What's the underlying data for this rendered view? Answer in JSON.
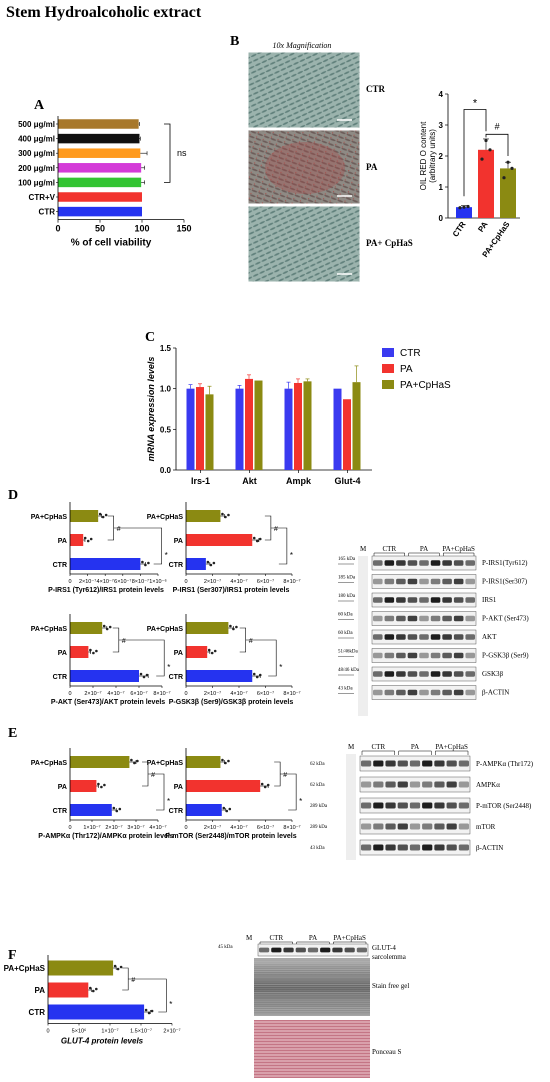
{
  "title": "Stem Hydroalcoholic  extract",
  "panels": {
    "A": "A",
    "B": "B",
    "C": "C",
    "D": "D",
    "E": "E",
    "F": "F"
  },
  "colors": {
    "brown": "#a8782a",
    "black": "#111111",
    "orange": "#ff9a1e",
    "magenta": "#d43bd8",
    "green": "#33c433",
    "red": "#f2332e",
    "blue": "#2533f0",
    "olive": "#8b8a12",
    "cpBlue": "#3a3af0"
  },
  "chart_data": [
    {
      "id": "A",
      "type": "bar",
      "orientation": "horizontal",
      "categories": [
        "500 μg/ml",
        "400 μg/ml",
        "300 μg/ml",
        "200 μg/ml",
        "100 μg/ml",
        "CTR+V",
        "CTR"
      ],
      "values": [
        96,
        97,
        98,
        99,
        99,
        100,
        100
      ],
      "errors": [
        1,
        1,
        8,
        4,
        4,
        0,
        0
      ],
      "xlabel": "% of cell viability",
      "xlim": [
        0,
        150
      ],
      "ticks": [
        "0",
        "50",
        "100",
        "150"
      ],
      "annotation": "ns"
    },
    {
      "id": "B",
      "type": "bar",
      "categories": [
        "CTR",
        "PA",
        "PA+CpHaS"
      ],
      "values": [
        0.35,
        2.2,
        1.6
      ],
      "errors": [
        0.05,
        0.35,
        0.2
      ],
      "points": [
        [
          0.33,
          0.35,
          0.37
        ],
        [
          1.9,
          2.5,
          2.2
        ],
        [
          1.3,
          1.8,
          1.6
        ]
      ],
      "ylabel": "OIL RED O content\n(arbitrary units)",
      "ylim": [
        0,
        4
      ],
      "ticks": [
        "0",
        "1",
        "2",
        "3",
        "4"
      ],
      "annotations": [
        "*",
        "#"
      ],
      "image_title": "10x Magnification",
      "image_labels": [
        "CTR",
        "PA",
        "PA+ CpHaS"
      ]
    },
    {
      "id": "C",
      "type": "bar",
      "categories": [
        "Irs-1",
        "Akt",
        "Ampk",
        "Glut-4"
      ],
      "series": [
        {
          "name": "CTR",
          "values": [
            1.0,
            1.0,
            1.0,
            1.0
          ],
          "errors": [
            0.05,
            0.04,
            0.08,
            0.0
          ]
        },
        {
          "name": "PA",
          "values": [
            1.02,
            1.12,
            1.07,
            0.87
          ],
          "errors": [
            0.04,
            0.05,
            0.05,
            0.0
          ]
        },
        {
          "name": "PA+CpHaS",
          "values": [
            0.93,
            1.1,
            1.09,
            1.08
          ],
          "errors": [
            0.1,
            0.0,
            0.03,
            0.2
          ]
        }
      ],
      "ylabel": "mRNA expression levels",
      "ylim": [
        0,
        1.5
      ],
      "ticks": [
        "0.0",
        "0.5",
        "1.0",
        "1.5"
      ]
    },
    {
      "id": "D1",
      "type": "bar",
      "orientation": "horizontal",
      "categories": [
        "PA+CpHaS",
        "PA",
        "CTR"
      ],
      "values": [
        3.2e-07,
        1.5e-07,
        8e-07
      ],
      "errors": [
        4e-08,
        2e-08,
        6e-08
      ],
      "xlabel": "P-IRS1 (Tyr612)/IRS1 protein levels",
      "ticks": [
        "0",
        "2×10⁻⁷",
        "4×10⁻⁷",
        "6×10⁻⁷",
        "8×10⁻⁷",
        "1×10⁻⁶"
      ],
      "xlim": [
        0,
        1e-06
      ],
      "annotations": [
        "#",
        "*"
      ]
    },
    {
      "id": "D2",
      "type": "bar",
      "orientation": "horizontal",
      "categories": [
        "PA+CpHaS",
        "PA",
        "CTR"
      ],
      "values": [
        2.6e-07,
        5e-07,
        1.5e-07
      ],
      "errors": [
        3e-08,
        5e-08,
        3e-08
      ],
      "xlabel": "P-IRS1 (Ser307)/IRS1 protein levels",
      "ticks": [
        "0",
        "2×10⁻⁷",
        "4×10⁻⁷",
        "6×10⁻⁷",
        "8×10⁻⁷"
      ],
      "xlim": [
        0,
        8e-07
      ],
      "annotations": [
        "#",
        "*"
      ]
    },
    {
      "id": "D3",
      "type": "bar",
      "orientation": "horizontal",
      "categories": [
        "PA+CpHaS",
        "PA",
        "CTR"
      ],
      "values": [
        2.8e-07,
        1.6e-07,
        6e-07
      ],
      "errors": [
        4e-08,
        2e-08,
        8e-08
      ],
      "xlabel": "P-AKT (Ser473)/AKT protein levels",
      "ticks": [
        "0",
        "2×10⁻⁷",
        "4×10⁻⁷",
        "6×10⁻⁷",
        "8×10⁻⁷"
      ],
      "xlim": [
        0,
        8e-07
      ],
      "annotations": [
        "#",
        "*"
      ]
    },
    {
      "id": "D4",
      "type": "bar",
      "orientation": "horizontal",
      "categories": [
        "PA+CpHaS",
        "PA",
        "CTR"
      ],
      "values": [
        3.2e-07,
        1.6e-07,
        5e-07
      ],
      "errors": [
        4e-08,
        2e-08,
        6e-08
      ],
      "xlabel": "P-GSK3β (Ser9)/GSK3β protein levels",
      "ticks": [
        "0",
        "2×10⁻⁷",
        "4×10⁻⁷",
        "6×10⁻⁷",
        "8×10⁻⁷"
      ],
      "xlim": [
        0,
        8e-07
      ],
      "annotations": [
        "#",
        "*"
      ]
    },
    {
      "id": "E1",
      "type": "bar",
      "orientation": "horizontal",
      "categories": [
        "PA+CpHaS",
        "PA",
        "CTR"
      ],
      "values": [
        2.7e-07,
        1.2e-07,
        1.9e-07
      ],
      "errors": [
        3e-08,
        1e-08,
        2e-08
      ],
      "xlabel": "P-AMPKα (Thr172)/AMPKα protein levels",
      "ticks": [
        "0",
        "1×10⁻⁷",
        "2×10⁻⁷",
        "3×10⁻⁷",
        "4×10⁻⁷"
      ],
      "xlim": [
        0,
        4e-07
      ],
      "annotations": [
        "#",
        "*"
      ]
    },
    {
      "id": "E2",
      "type": "bar",
      "orientation": "horizontal",
      "categories": [
        "PA+CpHaS",
        "PA",
        "CTR"
      ],
      "values": [
        2.6e-07,
        5.6e-07,
        2.7e-07
      ],
      "errors": [
        3e-08,
        6e-08,
        3e-08
      ],
      "xlabel": "P-mTOR (Ser2448)/mTOR protein levels",
      "ticks": [
        "0",
        "2×10⁻⁷",
        "4×10⁻⁷",
        "6×10⁻⁷",
        "8×10⁻⁷"
      ],
      "xlim": [
        0,
        8e-07
      ],
      "annotations": [
        "#",
        "*"
      ]
    },
    {
      "id": "F",
      "type": "bar",
      "orientation": "horizontal",
      "categories": [
        "PA+CpHaS",
        "PA",
        "CTR"
      ],
      "values": [
        1.05e-07,
        6.5e-08,
        1.55e-07
      ],
      "errors": [
        5e-09,
        5e-09,
        1e-08
      ],
      "xlabel": "GLUT-4 protein levels",
      "ticks": [
        "0",
        "5×10⁶",
        "1×10⁻⁷",
        "1.5×10⁻⁷",
        "2×10⁻⁷"
      ],
      "xlim": [
        0,
        2e-07
      ],
      "annotations": [
        "#",
        "*"
      ]
    }
  ],
  "blots": {
    "D": {
      "groups": [
        "CTR",
        "PA",
        "PA+CpHaS"
      ],
      "marker": "M",
      "rows": [
        {
          "kda": "165 kDa",
          "label": "P-IRS1(Tyr612)"
        },
        {
          "kda": "185 kDa",
          "label": "P-IRS1(Ser307)"
        },
        {
          "kda": "180 kDa",
          "label": "IRS1"
        },
        {
          "kda": "60 kDa",
          "label": "P-AKT (Ser473)"
        },
        {
          "kda": "60 kDa",
          "label": "AKT"
        },
        {
          "kda": "51/46kDa",
          "label": "P-GSK3β (Ser9)"
        },
        {
          "kda": "48/46 kDa",
          "label": "GSK3β"
        },
        {
          "kda": "43 kDa",
          "label": "β-ACTIN"
        }
      ]
    },
    "E": {
      "groups": [
        "CTR",
        "PA",
        "PA+CpHaS"
      ],
      "marker": "M",
      "rows": [
        {
          "kda": "62 kDa",
          "label": "P-AMPKα (Thr172)"
        },
        {
          "kda": "62 kDa",
          "label": "AMPKα"
        },
        {
          "kda": "289 kDa",
          "label": "P-mTOR (Ser2448)"
        },
        {
          "kda": "289 kDa",
          "label": "mTOR"
        },
        {
          "kda": "43 kDa",
          "label": "β-ACTIN"
        }
      ]
    },
    "F": {
      "groups": [
        "CTR",
        "PA",
        "PA+CpHaS"
      ],
      "marker": "M",
      "kda": "45 kDa",
      "labels": [
        "GLUT-4",
        "sarcolemma",
        "Stain free gel",
        "Ponceau S"
      ]
    }
  }
}
